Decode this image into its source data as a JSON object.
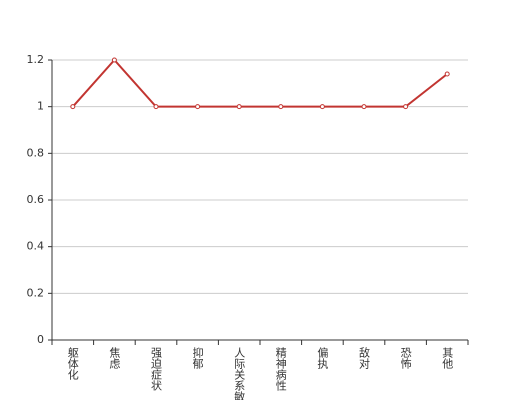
{
  "chart_data": {
    "type": "line",
    "categories": [
      "躯体化",
      "焦虑",
      "强迫症状",
      "抑郁",
      "人际关系敏感",
      "精神病性",
      "偏执",
      "敌对",
      "恐怖",
      "其他"
    ],
    "series": [
      {
        "color": "#c23531",
        "values": [
          1,
          1.2,
          1,
          1,
          1,
          1,
          1,
          1,
          1,
          1.14
        ]
      }
    ],
    "ylim": [
      0,
      1.2
    ],
    "yticks": [
      0,
      0.2,
      0.4,
      0.6,
      0.8,
      1,
      1.2
    ],
    "grid": true
  }
}
